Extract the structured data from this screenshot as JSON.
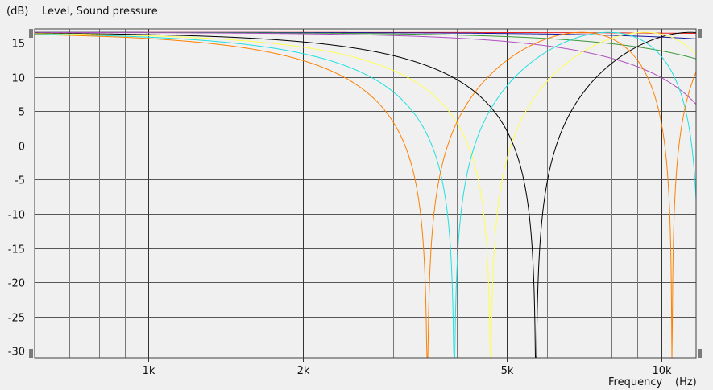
{
  "chart_data": {
    "type": "line",
    "ylabel_unit": "(dB)",
    "ylabel": "Level, Sound pressure",
    "xlabel": "Frequency",
    "xlabel_unit": "(Hz)",
    "x_scale": "log",
    "xlim": [
      600,
      11700
    ],
    "ylim": [
      -31,
      17
    ],
    "y_ticks": [
      15,
      10,
      5,
      0,
      -5,
      -10,
      -15,
      -20,
      -25,
      -30
    ],
    "x_ticks": [
      {
        "value": 1000,
        "label": "1k"
      },
      {
        "value": 2000,
        "label": "2k"
      },
      {
        "value": 5000,
        "label": "5k"
      },
      {
        "value": 10000,
        "label": "10k"
      }
    ],
    "x_minor_gridlines": [
      600,
      700,
      800,
      900,
      3000,
      4000,
      6000,
      7000,
      8000,
      9000
    ],
    "grid": true,
    "level_db": 16.5,
    "series": [
      {
        "color": "#e82020",
        "first_null_hz": 100000
      },
      {
        "color": "#1a1aa0",
        "first_null_hz": 40000
      },
      {
        "color": "#3a9a3a",
        "first_null_hz": 21000
      },
      {
        "color": "#b050c0",
        "first_null_hz": 14500
      },
      {
        "color": "#000000",
        "first_null_hz": 5700
      },
      {
        "color": "#ffff50",
        "first_null_hz": 4650
      },
      {
        "color": "#20e0e0",
        "first_null_hz": 3950
      },
      {
        "color": "#ff8000",
        "first_null_hz": 3500
      }
    ]
  }
}
